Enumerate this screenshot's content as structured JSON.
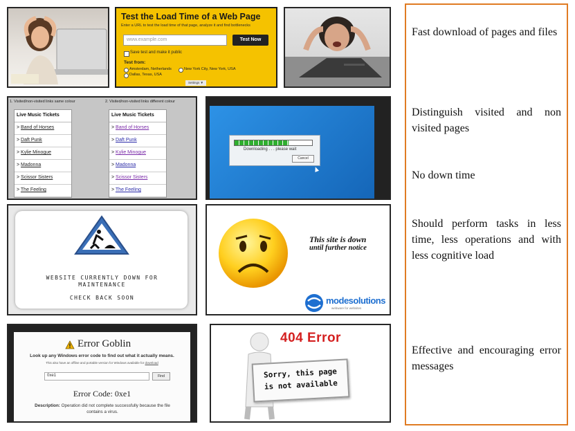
{
  "load_time": {
    "title": "Test the Load Time of a Web Page",
    "subtitle": "Enter a URL to test the load time of that page, analyze it and find bottlenecks",
    "url_placeholder": "www.example.com",
    "button": "Test Now",
    "save_label": "Save test and make it public",
    "test_from_label": "Test from:",
    "locations": [
      "Amsterdam, Netherlands",
      "New York City, New York, USA",
      "Dallas, Texas, USA"
    ],
    "settings_label": "Settings ▼"
  },
  "links_demo": {
    "caption_same": "1. Visited/non-visited links same colour",
    "caption_diff": "2. Visited/non-visited links different colour",
    "table_header": "Live Music Tickets",
    "items": [
      "Band of Horses",
      "Daft Punk",
      "Kylie Minogue",
      "Madonna",
      "Scissor Sisters",
      "The Feeling"
    ]
  },
  "download_dialog": {
    "message": "Downloading . . . please wait",
    "cancel": "Cancel"
  },
  "maintenance": {
    "line1": "WEBSITE CURRENTLY DOWN FOR",
    "line2": "MAINTENANCE",
    "line3": "CHECK BACK SOON"
  },
  "site_down": {
    "message_line1": "This site is down",
    "message_line2": "until further notice",
    "brand": "modesolutions",
    "brand_tagline": "webware for websites"
  },
  "error_goblin": {
    "title": "Error Goblin",
    "subtitle": "Look up any Windows error code to find out what it actually means.",
    "small_text": "This also have an offline and portable version for Windows available for",
    "small_link": "download",
    "input_value": "0xe1",
    "find_button": "Find",
    "error_code": "Error Code: 0xe1",
    "description_label": "Description:",
    "description_text": "Operation did not complete successfully because the file contains a virus."
  },
  "error_404": {
    "code": "404 Error",
    "sign_line1": "Sorry, this page",
    "sign_line2": "is not available"
  },
  "notes": [
    "Fast download of pages and files",
    "Distinguish visited and non visited pages",
    "No down time",
    "Should perform tasks in less time, less operations and with less cognitive load",
    "Effective and encouraging error messages"
  ],
  "colors": {
    "accent_border": "#e07b22",
    "yellow_panel": "#f5c200",
    "blue_screen": "#1a7fd6",
    "error_red": "#d42020"
  }
}
